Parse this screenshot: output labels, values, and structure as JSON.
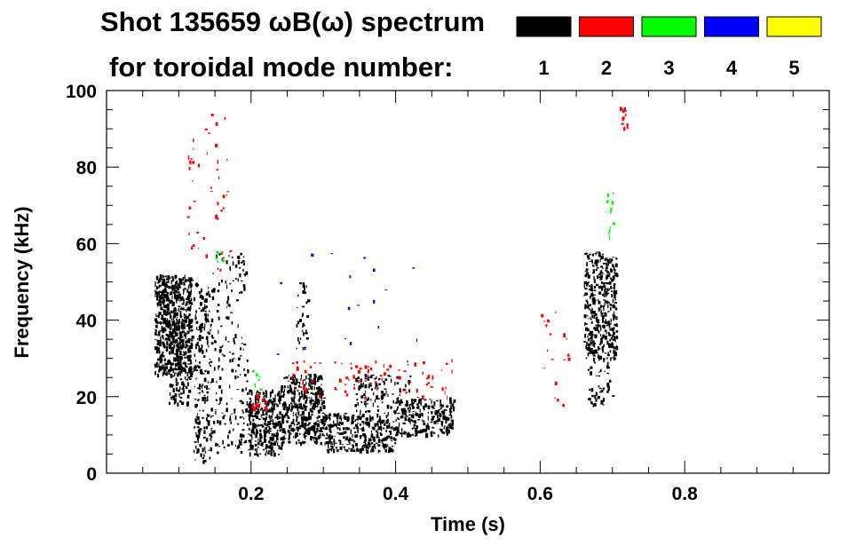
{
  "chart_data": {
    "type": "heatmap",
    "title_line1": "Shot 135659 ωB(ω) spectrum",
    "title_line2": "for toroidal mode number:",
    "xlabel": "Time (s)",
    "ylabel": "Frequency (kHz)",
    "xlim": [
      0.0,
      1.0
    ],
    "ylim": [
      0,
      100
    ],
    "x_ticks": [
      0.2,
      0.4,
      0.6,
      0.8
    ],
    "y_ticks": [
      0,
      20,
      40,
      60,
      80,
      100
    ],
    "x_minor_step": 0.05,
    "y_minor_step": 5,
    "legend": [
      {
        "label": "1",
        "color": "#000000"
      },
      {
        "label": "2",
        "color": "#ff0000"
      },
      {
        "label": "3",
        "color": "#00ff00"
      },
      {
        "label": "4",
        "color": "#0000ff"
      },
      {
        "label": "5",
        "color": "#ffff00"
      }
    ],
    "regions": [
      {
        "mode": "1",
        "t": [
          0.066,
          0.118
        ],
        "f": [
          26,
          52
        ],
        "density": 0.78
      },
      {
        "mode": "1",
        "t": [
          0.085,
          0.115
        ],
        "f": [
          18,
          40
        ],
        "density": 0.4
      },
      {
        "mode": "1",
        "t": [
          0.12,
          0.145
        ],
        "f": [
          3,
          50
        ],
        "density": 0.3
      },
      {
        "mode": "1",
        "t": [
          0.145,
          0.195
        ],
        "f": [
          5,
          58
        ],
        "density": 0.12
      },
      {
        "mode": "1",
        "t": [
          0.195,
          0.24
        ],
        "f": [
          5,
          22
        ],
        "density": 0.62
      },
      {
        "mode": "1",
        "t": [
          0.24,
          0.3
        ],
        "f": [
          8,
          26
        ],
        "density": 0.62
      },
      {
        "mode": "1",
        "t": [
          0.3,
          0.4
        ],
        "f": [
          6,
          16
        ],
        "density": 0.55
      },
      {
        "mode": "1",
        "t": [
          0.34,
          0.42
        ],
        "f": [
          16,
          26
        ],
        "density": 0.22
      },
      {
        "mode": "1",
        "t": [
          0.4,
          0.48
        ],
        "f": [
          10,
          20
        ],
        "density": 0.5
      },
      {
        "mode": "1",
        "t": [
          0.262,
          0.28
        ],
        "f": [
          32,
          50
        ],
        "density": 0.18
      },
      {
        "mode": "1",
        "t": [
          0.66,
          0.705
        ],
        "f": [
          30,
          58
        ],
        "density": 0.55
      },
      {
        "mode": "1",
        "t": [
          0.665,
          0.7
        ],
        "f": [
          18,
          30
        ],
        "density": 0.18
      },
      {
        "mode": "2",
        "t": [
          0.2,
          0.22
        ],
        "f": [
          17,
          21
        ],
        "density": 0.35
      },
      {
        "mode": "2",
        "t": [
          0.25,
          0.48
        ],
        "f": [
          20,
          30
        ],
        "density": 0.06
      },
      {
        "mode": "2",
        "t": [
          0.71,
          0.72
        ],
        "f": [
          90,
          96
        ],
        "density": 0.45
      },
      {
        "mode": "2",
        "t": [
          0.6,
          0.64
        ],
        "f": [
          18,
          44
        ],
        "density": 0.03
      },
      {
        "mode": "2",
        "t": [
          0.11,
          0.17
        ],
        "f": [
          52,
          96
        ],
        "density": 0.03
      },
      {
        "mode": "3",
        "t": [
          0.15,
          0.165
        ],
        "f": [
          55,
          62
        ],
        "density": 0.08
      },
      {
        "mode": "3",
        "t": [
          0.2,
          0.215
        ],
        "f": [
          22,
          28
        ],
        "density": 0.12
      },
      {
        "mode": "3",
        "t": [
          0.69,
          0.705
        ],
        "f": [
          62,
          74
        ],
        "density": 0.12
      },
      {
        "mode": "4",
        "t": [
          0.22,
          0.44
        ],
        "f": [
          28,
          58
        ],
        "density": 0.005
      }
    ]
  }
}
